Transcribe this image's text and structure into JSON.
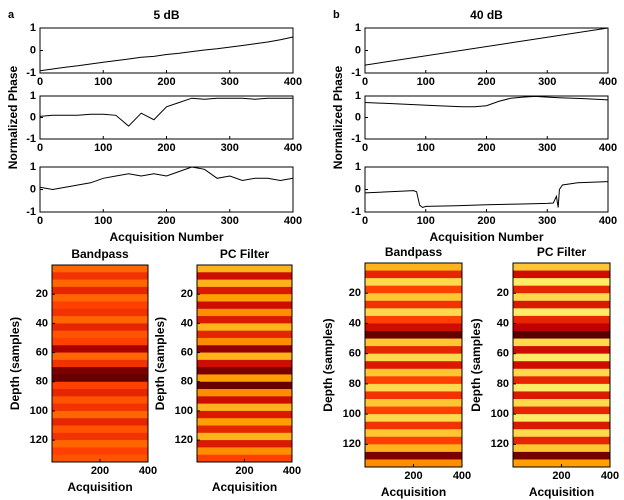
{
  "chart_data": [
    {
      "type": "line",
      "panel_label": "a",
      "title": "5 dB",
      "x": [
        0,
        20,
        40,
        60,
        80,
        100,
        120,
        140,
        160,
        180,
        200,
        220,
        240,
        260,
        280,
        300,
        320,
        340,
        360,
        380,
        400
      ],
      "values": [
        -0.9,
        -0.82,
        -0.74,
        -0.68,
        -0.6,
        -0.52,
        -0.45,
        -0.38,
        -0.3,
        -0.26,
        -0.18,
        -0.12,
        -0.05,
        0.02,
        0.08,
        0.15,
        0.22,
        0.3,
        0.38,
        0.48,
        0.6
      ],
      "color": "#000000",
      "xlim": [
        0,
        400
      ],
      "ylim": [
        -1,
        1
      ],
      "xticks": [
        0,
        100,
        200,
        300,
        400
      ],
      "yticks": [
        -1,
        0,
        1
      ]
    },
    {
      "type": "line",
      "ylabel": "Normalized Phase",
      "x": [
        0,
        20,
        40,
        60,
        80,
        100,
        120,
        140,
        160,
        180,
        200,
        220,
        240,
        260,
        280,
        300,
        320,
        340,
        360,
        380,
        400
      ],
      "values": [
        0.05,
        0.1,
        0.1,
        0.1,
        0.15,
        0.15,
        0.1,
        -0.4,
        0.2,
        -0.1,
        0.5,
        0.7,
        0.9,
        0.85,
        0.9,
        0.9,
        0.9,
        0.85,
        0.9,
        0.9,
        0.9
      ],
      "color": "#000000",
      "xlim": [
        0,
        400
      ],
      "ylim": [
        -1,
        1
      ],
      "xticks": [
        0,
        100,
        200,
        300,
        400
      ],
      "yticks": [
        -1,
        0,
        1
      ]
    },
    {
      "type": "line",
      "xlabel": "Acquisition Number",
      "x": [
        0,
        20,
        40,
        60,
        80,
        100,
        120,
        140,
        160,
        180,
        200,
        220,
        240,
        260,
        280,
        300,
        320,
        340,
        360,
        380,
        400
      ],
      "values": [
        0.1,
        0,
        0.1,
        0.2,
        0.3,
        0.5,
        0.6,
        0.7,
        0.6,
        0.7,
        0.6,
        0.8,
        1,
        0.9,
        0.5,
        0.6,
        0.4,
        0.5,
        0.5,
        0.4,
        0.5
      ],
      "color": "#000000",
      "xlim": [
        0,
        400
      ],
      "ylim": [
        -1,
        1
      ],
      "xticks": [
        0,
        100,
        200,
        300,
        400
      ],
      "yticks": [
        -1,
        0,
        1
      ]
    },
    {
      "type": "line",
      "panel_label": "b",
      "title": "40 dB",
      "x": [
        0,
        400
      ],
      "values": [
        -0.65,
        1
      ],
      "color": "#000000",
      "xlim": [
        0,
        400
      ],
      "ylim": [
        -1,
        1
      ],
      "xticks": [
        0,
        100,
        200,
        300,
        400
      ],
      "yticks": [
        -1,
        0,
        1
      ]
    },
    {
      "type": "line",
      "ylabel": "Normalized Phase",
      "x": [
        0,
        40,
        80,
        120,
        160,
        180,
        200,
        220,
        240,
        260,
        280,
        300,
        320,
        360,
        400
      ],
      "values": [
        0.7,
        0.65,
        0.6,
        0.55,
        0.5,
        0.5,
        0.55,
        0.75,
        0.9,
        0.95,
        0.98,
        0.95,
        0.92,
        0.88,
        0.82
      ],
      "color": "#000000",
      "xlim": [
        0,
        400
      ],
      "ylim": [
        -1,
        1
      ],
      "xticks": [
        0,
        100,
        200,
        300,
        400
      ],
      "yticks": [
        -1,
        0,
        1
      ]
    },
    {
      "type": "line",
      "xlabel": "Acquisition Number",
      "x": [
        0,
        40,
        80,
        85,
        90,
        95,
        100,
        150,
        200,
        250,
        300,
        310,
        315,
        318,
        320,
        325,
        350,
        400
      ],
      "values": [
        -0.15,
        -0.1,
        -0.05,
        -0.1,
        -0.7,
        -0.8,
        -0.75,
        -0.72,
        -0.68,
        -0.65,
        -0.62,
        -0.6,
        -0.3,
        -0.8,
        0,
        0.2,
        0.3,
        0.35
      ],
      "color": "#000000",
      "xlim": [
        0,
        400
      ],
      "ylim": [
        -1,
        1
      ],
      "xticks": [
        0,
        100,
        200,
        300,
        400
      ],
      "yticks": [
        -1,
        0,
        1
      ]
    },
    {
      "type": "heatmap",
      "title": "Bandpass",
      "ylabel": "Depth (samples)",
      "xlabel": "Acquisition",
      "values": [
        0.6,
        0.45,
        0.6,
        0.4,
        0.6,
        0.5,
        0.45,
        0.6,
        0.4,
        0.55,
        0.5,
        0.2,
        0.6,
        0.45,
        0.1,
        0.05,
        0.5,
        0.4,
        0.55,
        0.45,
        0.6,
        0.4,
        0.55,
        0.45,
        0.6,
        0.5,
        0.55
      ],
      "colormap": [
        "#500000",
        "#c00000",
        "#ff4000",
        "#ffa000",
        "#ffff80"
      ],
      "xlim": [
        0,
        400
      ],
      "ylim": [
        0,
        135
      ],
      "xticks": [
        200,
        400
      ],
      "yticks": [
        20,
        40,
        60,
        80,
        100,
        120
      ]
    },
    {
      "type": "heatmap",
      "title": "PC Filter",
      "ylabel": "Depth (samples)",
      "xlabel": "Acquisition",
      "values": [
        0.8,
        0.3,
        0.8,
        0.35,
        0.75,
        0.3,
        0.7,
        0.35,
        0.8,
        0.4,
        0.7,
        0.15,
        0.8,
        0.3,
        0.1,
        0.75,
        0.05,
        0.7,
        0.3,
        0.8,
        0.35,
        0.75,
        0.4,
        0.8,
        0.35,
        0.7,
        0.5
      ],
      "colormap": [
        "#500000",
        "#c00000",
        "#ff4000",
        "#ffa000",
        "#ffff80"
      ],
      "xlim": [
        0,
        400
      ],
      "ylim": [
        0,
        135
      ],
      "xticks": [
        200,
        400
      ],
      "yticks": [
        20,
        40,
        60,
        80,
        100,
        120
      ]
    },
    {
      "type": "heatmap",
      "title": "Bandpass",
      "ylabel": "Depth (samples)",
      "xlabel": "Acquisition",
      "values": [
        0.8,
        0.4,
        0.9,
        0.5,
        0.85,
        0.45,
        0.9,
        0.5,
        0.3,
        0.05,
        0.85,
        0.4,
        0.9,
        0.35,
        0.85,
        0.5,
        0.9,
        0.45,
        0.85,
        0.5,
        0.9,
        0.45,
        0.85,
        0.5,
        0.8,
        0.1,
        0.7
      ],
      "colormap": [
        "#500000",
        "#c00000",
        "#ff4000",
        "#ffa000",
        "#ffff80"
      ],
      "xlim": [
        0,
        400
      ],
      "ylim": [
        0,
        135
      ],
      "xticks": [
        200,
        400
      ],
      "yticks": [
        20,
        40,
        60,
        80,
        100,
        120
      ]
    },
    {
      "type": "heatmap",
      "title": "PC Filter",
      "ylabel": "Depth (samples)",
      "xlabel": "Acquisition",
      "values": [
        0.85,
        0.3,
        0.95,
        0.4,
        0.9,
        0.35,
        0.95,
        0.4,
        0.25,
        0.02,
        0.9,
        0.3,
        0.95,
        0.3,
        0.9,
        0.4,
        0.95,
        0.35,
        0.9,
        0.4,
        0.95,
        0.35,
        0.9,
        0.4,
        0.85,
        0.08,
        0.75
      ],
      "colormap": [
        "#500000",
        "#c00000",
        "#ff4000",
        "#ffa000",
        "#ffff80"
      ],
      "xlim": [
        0,
        400
      ],
      "ylim": [
        0,
        135
      ],
      "xticks": [
        200,
        400
      ],
      "yticks": [
        20,
        40,
        60,
        80,
        100,
        120
      ]
    }
  ]
}
